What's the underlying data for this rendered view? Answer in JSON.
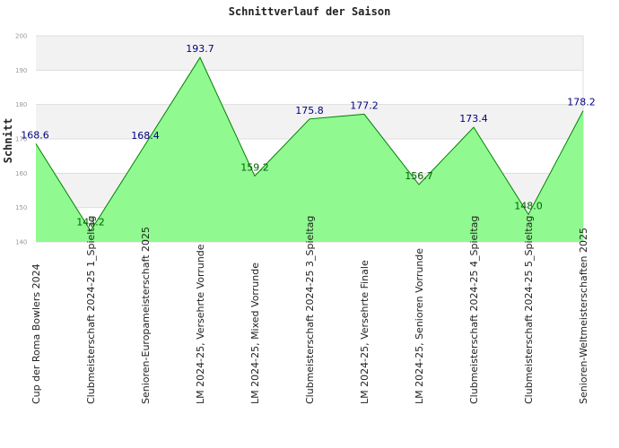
{
  "chart_data": {
    "type": "area",
    "title": "Schnittverlauf der Saison",
    "xlabel": "",
    "ylabel": "Schnitt",
    "ylim": [
      140,
      200
    ],
    "yticks": [
      140,
      150,
      160,
      170,
      180,
      190,
      200
    ],
    "ytick_labels": [
      "140",
      "150",
      "160",
      "170",
      "180",
      "190",
      "200"
    ],
    "grid": true,
    "categories": [
      "Cup der Roma Bowlers 2024",
      "Clubmeisterschaft 2024-25   1_Spieltag",
      "Senioren-Europameisterschaft 2025",
      "LM 2024-25, Versehrte Vorrunde",
      "LM 2024-25, Mixed Vorrunde",
      "Clubmeisterschaft 2024-25   3_Spieltag",
      "LM 2024-25, Versehrte Finale",
      "LM 2024-25, Senioren Vorrunde",
      "Clubmeisterschaft 2024-25   4_Spieltag",
      "Clubmeisterschaft 2024-25   5_Spieltag",
      "Senioren-Weltmeisterschaften 2025"
    ],
    "values": [
      168.6,
      143.2,
      168.4,
      193.7,
      159.2,
      175.8,
      177.2,
      156.7,
      173.4,
      148.0,
      178.2
    ],
    "value_labels": [
      "168.6",
      "143.2",
      "168.4",
      "193.7",
      "159.2",
      "175.8",
      "177.2",
      "156.7",
      "173.4",
      "148.0",
      "178.2"
    ],
    "colors": {
      "fill": "#90f990",
      "line": "#008000",
      "label_above": "#000080",
      "label_below": "#006400",
      "band": "#f2f2f2",
      "grid": "#dddddd"
    }
  }
}
